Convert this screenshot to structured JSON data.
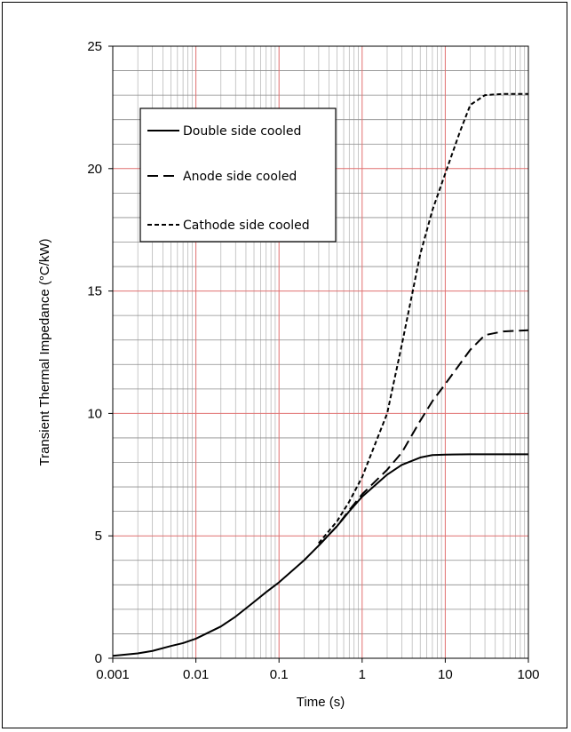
{
  "chart_data": {
    "type": "line",
    "title": "",
    "xlabel": "Time (s)",
    "ylabel": "Transient Thermal Impedance (°C/kW)",
    "xscale": "log",
    "xlim": [
      0.001,
      100
    ],
    "ylim": [
      0,
      25
    ],
    "x_ticks": [
      "0.001",
      "0.01",
      "0.1",
      "1",
      "10",
      "100"
    ],
    "y_ticks": [
      "0",
      "5",
      "10",
      "15",
      "20",
      "25"
    ],
    "grid": true,
    "major_grid_color": "#e07070",
    "minor_grid_color": "#b0b0b0",
    "legend_position": "top-left",
    "series": [
      {
        "name": "Double side cooled",
        "dash": "solid",
        "points": [
          [
            0.001,
            0.1
          ],
          [
            0.002,
            0.2
          ],
          [
            0.003,
            0.3
          ],
          [
            0.005,
            0.5
          ],
          [
            0.007,
            0.62
          ],
          [
            0.01,
            0.8
          ],
          [
            0.02,
            1.3
          ],
          [
            0.03,
            1.7
          ],
          [
            0.05,
            2.3
          ],
          [
            0.07,
            2.7
          ],
          [
            0.1,
            3.1
          ],
          [
            0.2,
            4.0
          ],
          [
            0.3,
            4.6
          ],
          [
            0.5,
            5.4
          ],
          [
            0.7,
            6.0
          ],
          [
            1,
            6.6
          ],
          [
            2,
            7.5
          ],
          [
            3,
            7.9
          ],
          [
            5,
            8.2
          ],
          [
            7,
            8.3
          ],
          [
            10,
            8.32
          ],
          [
            20,
            8.33
          ],
          [
            50,
            8.33
          ],
          [
            100,
            8.33
          ]
        ]
      },
      {
        "name": "Anode side cooled",
        "dash": "long-dash",
        "points": [
          [
            0.3,
            4.6
          ],
          [
            0.5,
            5.4
          ],
          [
            0.7,
            6.05
          ],
          [
            1,
            6.7
          ],
          [
            2,
            7.7
          ],
          [
            3,
            8.4
          ],
          [
            5,
            9.7
          ],
          [
            7,
            10.5
          ],
          [
            10,
            11.2
          ],
          [
            20,
            12.6
          ],
          [
            30,
            13.2
          ],
          [
            50,
            13.35
          ],
          [
            100,
            13.4
          ]
        ]
      },
      {
        "name": "Cathode side cooled",
        "dash": "short-dash",
        "points": [
          [
            0.3,
            4.7
          ],
          [
            0.5,
            5.6
          ],
          [
            0.7,
            6.4
          ],
          [
            1,
            7.4
          ],
          [
            2,
            10.0
          ],
          [
            3,
            12.8
          ],
          [
            5,
            16.5
          ],
          [
            7,
            18.3
          ],
          [
            10,
            19.8
          ],
          [
            15,
            21.5
          ],
          [
            20,
            22.6
          ],
          [
            30,
            23.0
          ],
          [
            50,
            23.05
          ],
          [
            100,
            23.05
          ]
        ]
      }
    ]
  }
}
